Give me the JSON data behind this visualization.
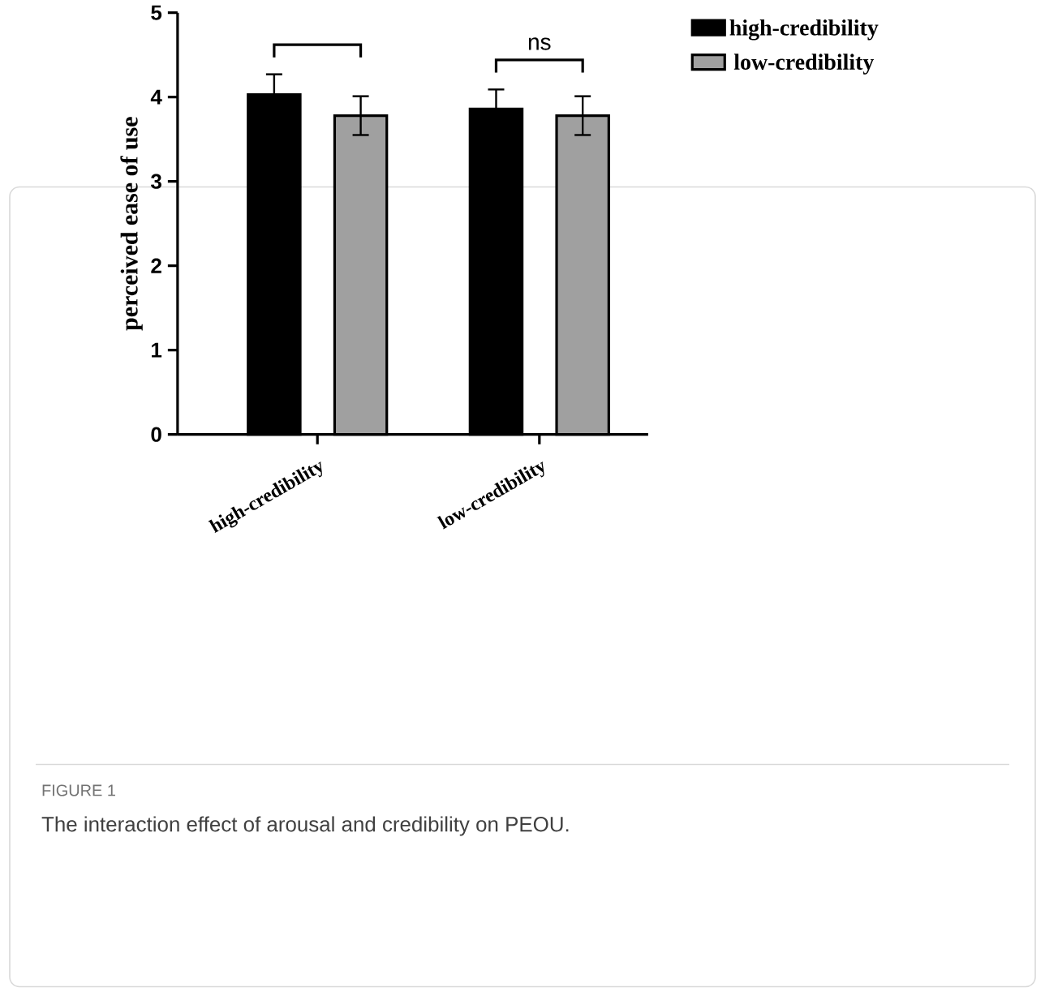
{
  "chart_data": {
    "type": "bar",
    "categories": [
      "high-credibility",
      "low-credibility"
    ],
    "series": [
      {
        "name": "high-credibility",
        "color": "#000000",
        "values": [
          4.03,
          3.86
        ],
        "errors": [
          0.24,
          0.23
        ]
      },
      {
        "name": "low-credibility",
        "color": "#a0a0a0",
        "values": [
          3.78,
          3.78
        ],
        "errors": [
          0.23,
          0.23
        ]
      }
    ],
    "ylabel": "perceived ease of use",
    "ylim": [
      0,
      5
    ],
    "yticks": [
      0,
      1,
      2,
      3,
      4,
      5
    ],
    "legend": "top right",
    "annotations": [
      "ns",
      "FIGURE 1",
      "The interaction effect of arousal and credibility on PEOU."
    ]
  }
}
